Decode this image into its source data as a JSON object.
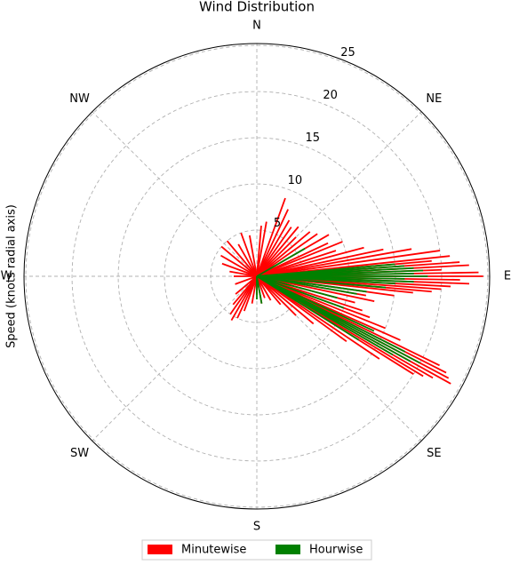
{
  "chart_data": {
    "type": "polar-lines",
    "title": "Wind Distribution",
    "ylabel": "Speed (knots radial axis)",
    "theta_direction": "clockwise",
    "theta_zero": "N",
    "theta_ticks": [
      0,
      45,
      90,
      135,
      180,
      225,
      270,
      315
    ],
    "theta_labels": [
      "N",
      "NE",
      "E",
      "SE",
      "S",
      "SW",
      "W",
      "NW"
    ],
    "rlim": [
      0,
      25.2
    ],
    "rticks": [
      5,
      10,
      15,
      20,
      25
    ],
    "grid": true,
    "legend": "bottom",
    "series": [
      {
        "name": "Minutewise",
        "color": "#ff0000",
        "directions": [
          20,
          25,
          30,
          35,
          40,
          45,
          50,
          55,
          60,
          65,
          68,
          72,
          75,
          78,
          80,
          82,
          84,
          85,
          86,
          87,
          88,
          89,
          90,
          91,
          92,
          93,
          94,
          95,
          96,
          98,
          100,
          102,
          105,
          108,
          110,
          112,
          114,
          116,
          117,
          118,
          119,
          120,
          121,
          122,
          124,
          126,
          130,
          135,
          140,
          150,
          160,
          170,
          180,
          190,
          200,
          205,
          210,
          215,
          220,
          230,
          250,
          270,
          280,
          290,
          300,
          310,
          320,
          330,
          340,
          350,
          5,
          10
        ],
        "speeds": [
          9,
          8,
          7,
          6.5,
          7,
          6,
          7.5,
          8,
          9,
          8.5,
          10,
          9,
          12,
          14,
          17,
          20,
          21,
          19,
          22,
          23,
          20,
          24,
          24.5,
          22,
          23,
          21,
          20,
          19,
          17,
          15,
          12,
          13,
          11,
          12,
          13,
          15,
          17,
          22,
          23,
          23.5,
          24,
          22,
          21,
          20,
          16,
          12,
          8,
          6,
          4,
          3,
          2.5,
          3,
          2,
          3,
          4,
          5,
          5.5,
          5,
          4,
          3,
          2.5,
          2.5,
          3,
          4,
          4.5,
          5,
          5,
          4,
          5,
          4.5,
          5.5,
          6
        ]
      },
      {
        "name": "Hourwise",
        "color": "#008000",
        "directions": [
          60,
          85,
          86,
          87,
          88,
          89,
          90,
          91,
          92,
          93,
          95,
          98,
          100,
          105,
          110,
          115,
          117,
          118,
          119,
          120,
          122,
          170,
          180
        ],
        "speeds": [
          6,
          15,
          16,
          17,
          18,
          17,
          18.5,
          16,
          17,
          15,
          14,
          12,
          11,
          9,
          10,
          14,
          18,
          20,
          19,
          17,
          13,
          3,
          2.5
        ]
      }
    ]
  }
}
